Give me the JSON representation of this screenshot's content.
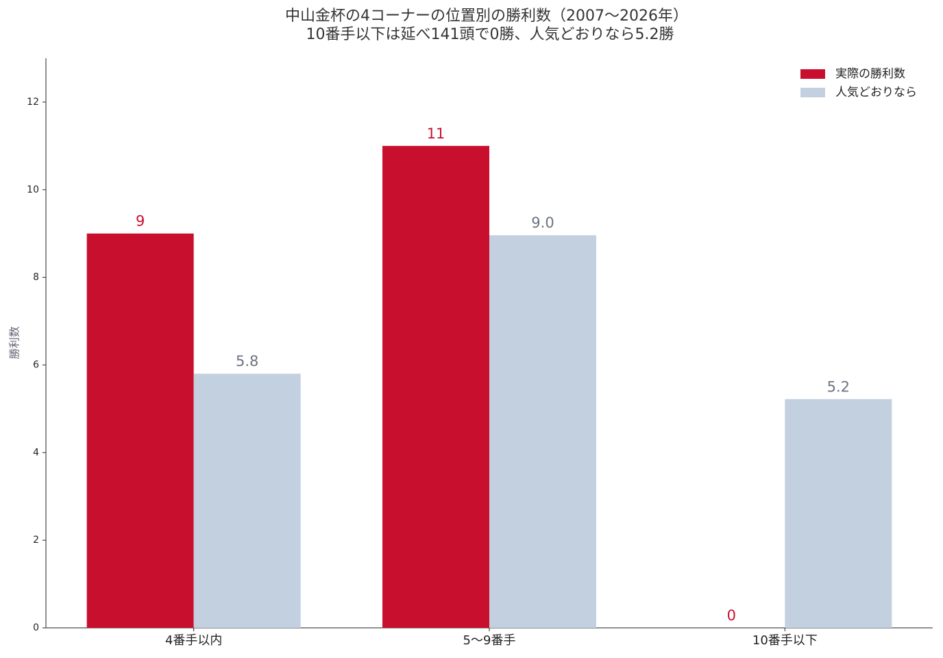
{
  "chart_data": {
    "type": "bar",
    "title": "中山金杯の4コーナーの位置別の勝利数（2007〜2026年）",
    "subtitle": "10番手以下は延べ141頭で0勝、人気どおりなら5.2勝",
    "y_label": "勝利数",
    "categories": [
      "4番手以内",
      "5〜9番手",
      "10番手以下"
    ],
    "series": [
      {
        "name": "実際の勝利数",
        "color": "#c8102e",
        "values": [
          9,
          11,
          0
        ]
      },
      {
        "name": "人気どおりなら",
        "color": "#c3d0df",
        "values": [
          5.8,
          8.96,
          5.22
        ],
        "value_labels": [
          "5.8",
          "9.0",
          "5.2"
        ]
      }
    ],
    "ylim": [
      0,
      13
    ],
    "yticks": [
      0,
      2,
      4,
      6,
      8,
      10,
      12
    ],
    "grid": false,
    "legend": "upper right"
  }
}
